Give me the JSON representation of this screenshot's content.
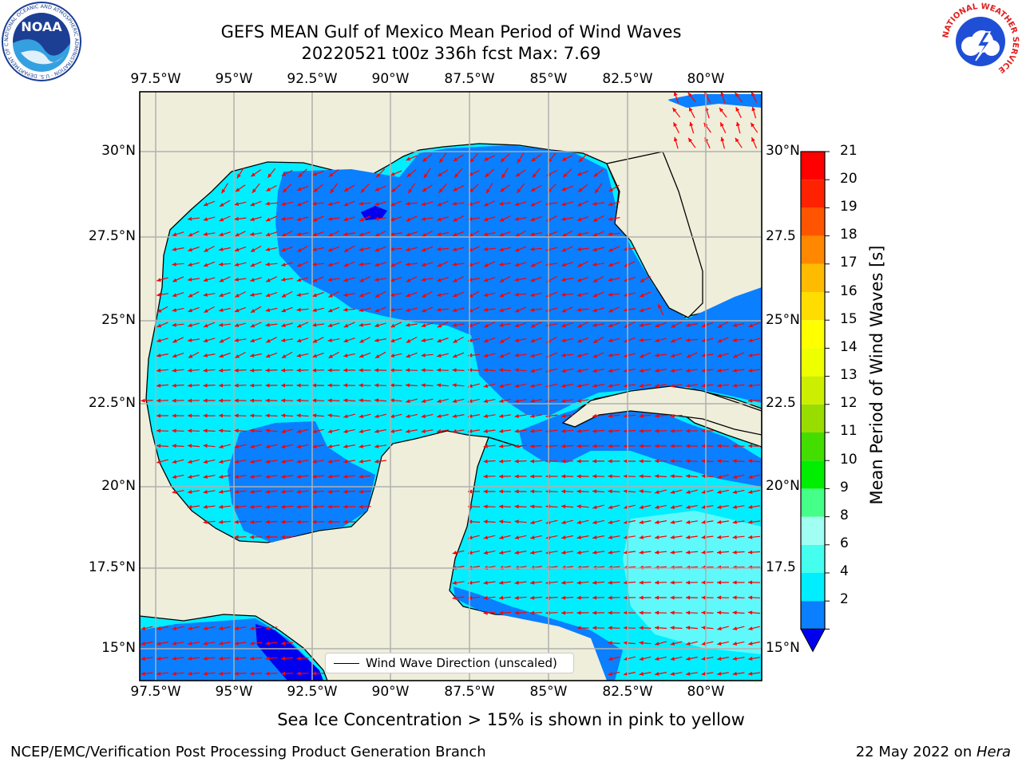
{
  "header": {
    "title_line1": "GEFS MEAN Gulf of Mexico Mean Period of Wind Waves",
    "title_line2": "20220521 t00z 336h fcst   Max: 7.69"
  },
  "logos": {
    "noaa_text": "NOAA",
    "noaa_ring": "NATIONAL OCEANIC AND ATMOSPHERIC ADMINISTRATION · U.S. DEPARTMENT OF COMMERCE",
    "nws_ring": "NATIONAL WEATHER SERVICE"
  },
  "axes": {
    "longitude_ticks": [
      "97.5°W",
      "95°W",
      "92.5°W",
      "90°W",
      "87.5°W",
      "85°W",
      "82.5°W",
      "80°W"
    ],
    "latitude_ticks": [
      "30°N",
      "27.5°N",
      "25°N",
      "22.5°N",
      "20°N",
      "17.5°N",
      "15°N"
    ],
    "latitude_ticks_right": [
      "30°N",
      "27.5",
      "25°N",
      "22.5",
      "20°N",
      "17.5",
      "15°N"
    ]
  },
  "colorbar": {
    "title": "Mean Period of Wind Waves [s]",
    "tick_labels": [
      "2",
      "4",
      "6",
      "8",
      "9",
      "10",
      "11",
      "12",
      "13",
      "14",
      "15",
      "16",
      "17",
      "18",
      "19",
      "20",
      "21"
    ],
    "colors": [
      "#0000ee",
      "#0a7fff",
      "#00eeff",
      "#44ffee",
      "#a0fff2",
      "#44ff88",
      "#00ee00",
      "#44dd00",
      "#99dd00",
      "#ccee00",
      "#eeff00",
      "#ffff00",
      "#ffdd00",
      "#ffbb00",
      "#ff8800",
      "#ff5500",
      "#ff2200",
      "#ff0000"
    ]
  },
  "legend": {
    "label": "Wind Wave Direction (unscaled)"
  },
  "map_colors": {
    "land": "#efeedb",
    "ocean_low": "#0a7fff",
    "ocean_mid": "#00eeff",
    "ocean_high": "#5ff9fb",
    "ocean_min": "#0000ee",
    "arrows": "#ff0000",
    "grid": "#b0b0b0",
    "coast": "#000000"
  },
  "notes": {
    "sea_ice": "Sea Ice Concentration > 15% is shown in pink to yellow"
  },
  "footer": {
    "left": "NCEP/EMC/Verification Post Processing Product Generation Branch",
    "date": "22 May 2022 on ",
    "host": "Hera"
  }
}
